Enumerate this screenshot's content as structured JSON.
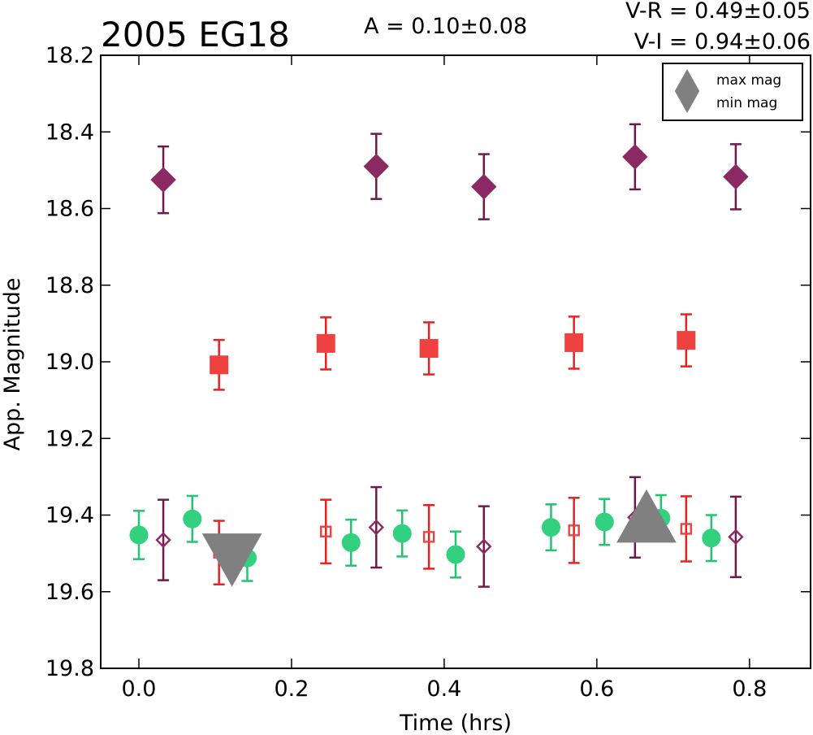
{
  "chart_data": {
    "type": "scatter",
    "title": "2005 EG18",
    "amplitude_text": "A  = 0.10±0.08",
    "color_text_vr": "V-R = 0.49±0.05",
    "color_text_vi": "V-I  = 0.94±0.06",
    "xlabel": "Time (hrs)",
    "ylabel": "App. Magnitude",
    "xlim": [
      -0.05,
      0.88
    ],
    "ylim": [
      19.8,
      18.2
    ],
    "y_inverted": true,
    "xticks": [
      "0.0",
      "0.2",
      "0.4",
      "0.6",
      "0.8"
    ],
    "yticks": [
      "18.2",
      "18.4",
      "18.6",
      "18.8",
      "19.0",
      "19.2",
      "19.4",
      "19.6",
      "19.8"
    ],
    "grid": false,
    "legend": {
      "placement": "top-right",
      "entries": [
        {
          "label": "max mag",
          "marker": "triangle-up",
          "color": "#808080"
        },
        {
          "label": "min mag",
          "marker": "triangle-down",
          "color": "#808080"
        }
      ]
    },
    "series": [
      {
        "marker": "diamond",
        "filled": true,
        "color": "#8b2a62",
        "errcolor": "#6e1a4c",
        "x": [
          0.032,
          0.311,
          0.452,
          0.65,
          0.782
        ],
        "y": [
          18.525,
          18.49,
          18.543,
          18.465,
          18.517
        ],
        "err": [
          0.087,
          0.085,
          0.085,
          0.085,
          0.085
        ]
      },
      {
        "marker": "square",
        "filled": true,
        "color": "#f04141",
        "errcolor": "#e52222",
        "x": [
          0.105,
          0.245,
          0.38,
          0.57,
          0.717
        ],
        "y": [
          19.008,
          18.952,
          18.965,
          18.95,
          18.944
        ],
        "err": [
          0.065,
          0.068,
          0.068,
          0.068,
          0.068
        ]
      },
      {
        "marker": "circle",
        "filled": true,
        "color": "#33d17f",
        "errcolor": "#22c46f",
        "x": [
          0.0,
          0.07,
          0.142,
          0.278,
          0.345,
          0.415,
          0.54,
          0.61,
          0.684,
          0.75
        ],
        "y": [
          19.452,
          19.41,
          19.512,
          19.472,
          19.448,
          19.503,
          19.432,
          19.418,
          19.408,
          19.46
        ],
        "err": [
          0.063,
          0.06,
          0.06,
          0.06,
          0.06,
          0.06,
          0.06,
          0.06,
          0.06,
          0.06
        ]
      },
      {
        "marker": "square",
        "filled": false,
        "color": "#f04141",
        "errcolor": "#e52222",
        "x": [
          0.105,
          0.245,
          0.38,
          0.57,
          0.717
        ],
        "y": [
          19.498,
          19.443,
          19.457,
          19.44,
          19.436
        ],
        "err": [
          0.083,
          0.083,
          0.083,
          0.085,
          0.085
        ]
      },
      {
        "marker": "diamond",
        "filled": false,
        "color": "#8b2a62",
        "errcolor": "#6e1a4c",
        "x": [
          0.032,
          0.311,
          0.452,
          0.65,
          0.782
        ],
        "y": [
          19.465,
          19.432,
          19.482,
          19.406,
          19.457
        ],
        "err": [
          0.105,
          0.105,
          0.105,
          0.105,
          0.105
        ]
      }
    ],
    "extrema": [
      {
        "type": "min mag",
        "marker": "triangle-down",
        "color": "#808080",
        "x": 0.122,
        "y": 19.5
      },
      {
        "type": "max mag",
        "marker": "triangle-up",
        "color": "#808080",
        "x": 0.665,
        "y": 19.42
      }
    ]
  }
}
